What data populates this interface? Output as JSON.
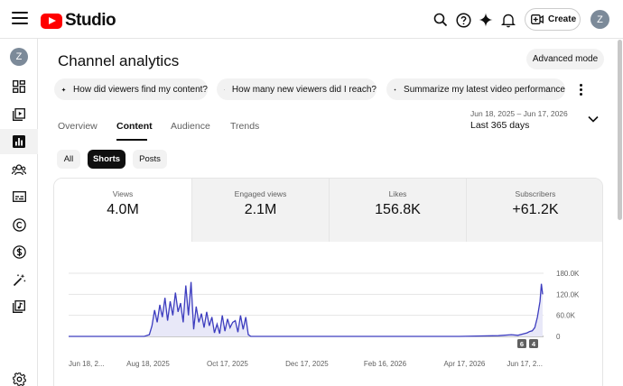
{
  "header": {
    "logo_text": "Studio",
    "create_label": "Create",
    "avatar_initial": "Z",
    "icons": [
      "menu-icon",
      "search-icon",
      "help-icon",
      "sparkle-icon",
      "bell-icon",
      "create-video-icon"
    ]
  },
  "rail": {
    "avatar_initial": "Z",
    "items": [
      "dashboard-icon",
      "content-icon",
      "analytics-icon",
      "community-icon",
      "subtitles-icon",
      "copyright-icon",
      "earn-icon",
      "customization-icon",
      "audio-library-icon",
      "settings-icon"
    ],
    "active": "analytics-icon"
  },
  "page": {
    "title": "Channel analytics",
    "advanced_mode": "Advanced mode",
    "questions": [
      "How did viewers find my content?",
      "How many new viewers did I reach?",
      "Summarize my latest video performance"
    ]
  },
  "tabs": [
    "Overview",
    "Content",
    "Audience",
    "Trends"
  ],
  "active_tab": "Content",
  "date": {
    "range": "Jun 18, 2025 – Jun 17, 2026",
    "label": "Last 365 days"
  },
  "filters": [
    "All",
    "Shorts",
    "Posts"
  ],
  "active_filter": "Shorts",
  "metrics": [
    {
      "label": "Views",
      "value": "4.0M"
    },
    {
      "label": "Engaged views",
      "value": "2.1M"
    },
    {
      "label": "Likes",
      "value": "156.8K"
    },
    {
      "label": "Subscribers",
      "value": "+61.2K"
    }
  ],
  "colors": {
    "accent": "#ff0000",
    "line": "#3d3dbf",
    "fill": "#e8e8f8"
  },
  "chart_data": {
    "type": "area",
    "series_metric": "Views",
    "x_tick_labels": [
      "Jun 18, 2...",
      "Aug 18, 2025",
      "Oct 17, 2025",
      "Dec 17, 2025",
      "Feb 16, 2026",
      "Apr 17, 2026",
      "Jun 17, 2..."
    ],
    "y_tick_labels": [
      "180.0K",
      "120.0K",
      "60.0K",
      "0"
    ],
    "ylim": [
      0,
      180000
    ],
    "x_days": [
      0,
      20,
      40,
      50,
      58,
      62,
      64,
      66,
      68,
      70,
      72,
      74,
      76,
      78,
      80,
      82,
      84,
      86,
      88,
      90,
      92,
      94,
      96,
      98,
      100,
      102,
      104,
      106,
      108,
      110,
      112,
      114,
      116,
      118,
      120,
      122,
      124,
      126,
      128,
      130,
      132,
      134,
      136,
      138,
      140,
      142,
      144,
      146,
      148,
      150,
      160,
      200,
      250,
      300,
      330,
      340,
      345,
      350,
      352,
      354,
      356,
      358,
      360,
      362,
      363,
      364
    ],
    "values": [
      0,
      0,
      0,
      0,
      0,
      5000,
      30000,
      75000,
      40000,
      90000,
      55000,
      110000,
      45000,
      100000,
      60000,
      125000,
      70000,
      95000,
      40000,
      145000,
      60000,
      155000,
      20000,
      85000,
      40000,
      65000,
      25000,
      70000,
      30000,
      55000,
      10000,
      35000,
      8000,
      60000,
      15000,
      50000,
      25000,
      40000,
      45000,
      12000,
      60000,
      20000,
      55000,
      5000,
      0,
      0,
      0,
      0,
      0,
      0,
      0,
      0,
      0,
      0,
      2000,
      5000,
      3000,
      8000,
      10000,
      14000,
      16000,
      25000,
      55000,
      100000,
      150000,
      120000
    ],
    "annotations": [
      "6",
      "4"
    ]
  }
}
